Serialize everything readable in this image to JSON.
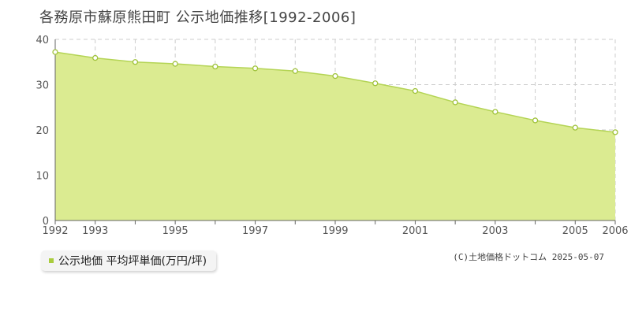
{
  "header": {
    "title": "各務原市蘇原熊田町 公示地価推移[1992-2006]"
  },
  "legend": {
    "label": "公示地価 平均坪単価(万円/坪)",
    "color": "#a9cc3d"
  },
  "footer": {
    "copyright": "(C)土地価格ドットコム 2025-05-07"
  },
  "colors": {
    "fill": "#dbeb91",
    "line": "#b4d455",
    "marker": "#9fc23a",
    "grid": "#cccccc"
  },
  "chart_data": {
    "type": "area",
    "title": "各務原市蘇原熊田町 公示地価推移[1992-2006]",
    "xlabel": "",
    "ylabel": "",
    "x": [
      1992,
      1993,
      1994,
      1995,
      1996,
      1997,
      1998,
      1999,
      2000,
      2001,
      2002,
      2003,
      2004,
      2005,
      2006
    ],
    "x_tick_labels": [
      "1992",
      "1993",
      "1995",
      "1997",
      "1999",
      "2001",
      "2003",
      "2005",
      "2006"
    ],
    "ylim": [
      0,
      40
    ],
    "y_ticks": [
      0,
      10,
      20,
      30,
      40
    ],
    "grid": true,
    "legend_position": "bottom-left",
    "series": [
      {
        "name": "公示地価 平均坪単価(万円/坪)",
        "values": [
          37.2,
          35.9,
          35.0,
          34.6,
          34.0,
          33.6,
          33.0,
          31.9,
          30.3,
          28.6,
          26.1,
          24.0,
          22.1,
          20.5,
          19.5
        ]
      }
    ]
  }
}
